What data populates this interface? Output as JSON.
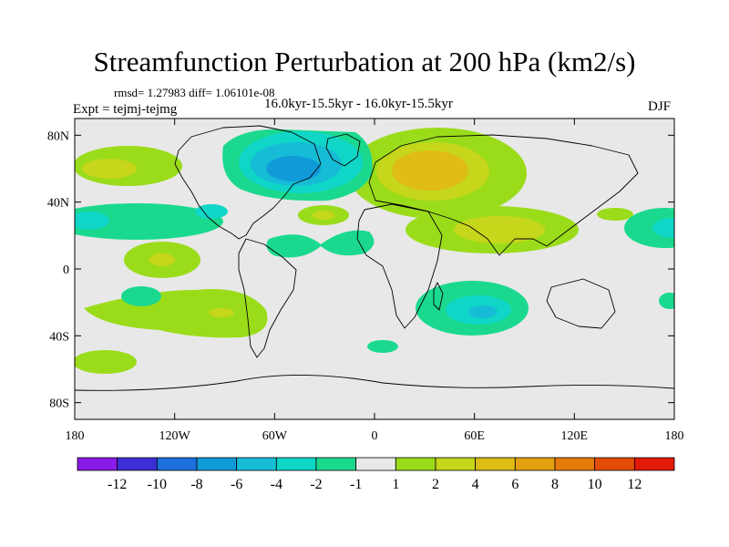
{
  "title": "Streamfunction Perturbation at 200 hPa (km2/s)",
  "rmsd_text": "rmsd= 1.27983 diff= 1.06101e-08",
  "expt_text": "Expt = tejmj-tejmg",
  "period_text": "16.0kyr-15.5kyr - 16.0kyr-15.5kyr",
  "season": "DJF",
  "map": {
    "lon_range": [
      -180,
      180
    ],
    "lat_range": [
      -90,
      90
    ],
    "lat_ticks": [
      {
        "value": 80,
        "label": "80N"
      },
      {
        "value": 40,
        "label": "40N"
      },
      {
        "value": 0,
        "label": "0"
      },
      {
        "value": -40,
        "label": "40S"
      },
      {
        "value": -80,
        "label": "80S"
      }
    ],
    "lon_ticks": [
      {
        "value": -180,
        "label": "180"
      },
      {
        "value": -120,
        "label": "120W"
      },
      {
        "value": -60,
        "label": "60W"
      },
      {
        "value": 0,
        "label": "0"
      },
      {
        "value": 60,
        "label": "60E"
      },
      {
        "value": 120,
        "label": "120E"
      },
      {
        "value": 180,
        "label": "180"
      }
    ],
    "background_color": "#e8e8e8"
  },
  "colorbar": {
    "colors": [
      "#8a1ae6",
      "#3c2fd6",
      "#1d6fdc",
      "#119ad8",
      "#16bcd6",
      "#0fd6c7",
      "#1ad98e",
      "#e8e8e8",
      "#9bdc1a",
      "#c6d61a",
      "#dfbd14",
      "#e3a00f",
      "#e67a0b",
      "#e44d08",
      "#e21a08"
    ],
    "labels": [
      "-12",
      "-10",
      "-8",
      "-6",
      "-4",
      "-2",
      "-1",
      "1",
      "2",
      "4",
      "6",
      "8",
      "10",
      "12"
    ]
  }
}
